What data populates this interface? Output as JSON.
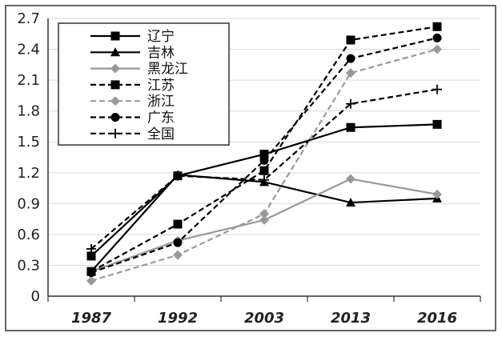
{
  "chart_data": {
    "type": "line",
    "title": "",
    "xlabel": "",
    "ylabel": "",
    "categories": [
      "1987",
      "1992",
      "2003",
      "2013",
      "2016"
    ],
    "y_ticks": [
      "0",
      "0.3",
      "0.6",
      "0.9",
      "1.2",
      "1.5",
      "1.8",
      "2.1",
      "2.4",
      "2.7"
    ],
    "ylim": [
      0,
      2.7
    ],
    "grid": true,
    "legend_placement": "top-left",
    "series": [
      {
        "name": "辽宁",
        "values": [
          0.39,
          1.17,
          1.38,
          1.64,
          1.67
        ],
        "color": "#000000",
        "dash": "solid",
        "marker": "square"
      },
      {
        "name": "吉林",
        "values": [
          0.24,
          1.18,
          1.11,
          0.91,
          0.95
        ],
        "color": "#000000",
        "dash": "solid",
        "marker": "triangle"
      },
      {
        "name": "黑龙江",
        "values": [
          0.24,
          0.54,
          0.74,
          1.14,
          0.99
        ],
        "color": "#999999",
        "dash": "solid",
        "marker": "diamond"
      },
      {
        "name": "江苏",
        "values": [
          0.24,
          0.7,
          1.22,
          2.49,
          2.62
        ],
        "color": "#000000",
        "dash": "dashed",
        "marker": "square"
      },
      {
        "name": "浙江",
        "values": [
          0.15,
          0.4,
          0.8,
          2.17,
          2.4
        ],
        "color": "#999999",
        "dash": "dashed",
        "marker": "diamond"
      },
      {
        "name": "广东",
        "values": [
          0.23,
          0.52,
          1.32,
          2.31,
          2.51
        ],
        "color": "#000000",
        "dash": "dashed",
        "marker": "circle"
      },
      {
        "name": "全国",
        "values": [
          0.46,
          1.17,
          1.13,
          1.87,
          2.01
        ],
        "color": "#000000",
        "dash": "dashed",
        "marker": "plus"
      }
    ]
  }
}
